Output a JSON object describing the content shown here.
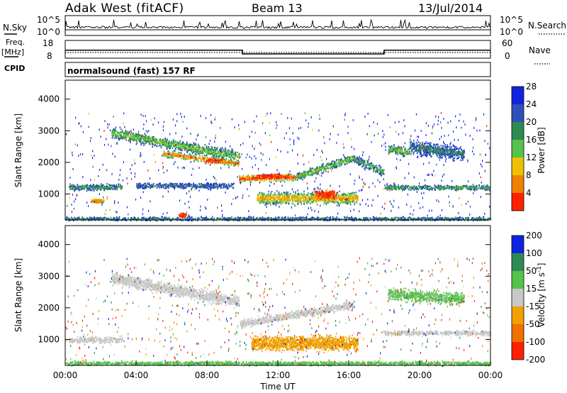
{
  "header": {
    "station": "Adak West (fitACF)",
    "beam": "Beam 13",
    "date": "13/Jul/2014"
  },
  "noise_panel": {
    "left_label": "N.Sky",
    "right_label": "N.Search",
    "left_ticks": [
      "10^5",
      "10^0"
    ],
    "right_ticks": [
      "10^5",
      "10^0"
    ]
  },
  "freq_panel": {
    "left_label": "Freq.",
    "left_unit": "[MHz]",
    "right_label": "Nave",
    "left_ticks": [
      "18",
      "8"
    ],
    "right_ticks": [
      "60",
      "0"
    ],
    "freq_steps": [
      {
        "start": 0.0,
        "end": 10.0,
        "value": 12.5
      },
      {
        "start": 10.0,
        "end": 18.0,
        "value": 10.4
      },
      {
        "start": 18.0,
        "end": 24.0,
        "value": 12.5
      }
    ]
  },
  "cpid_panel": {
    "label": "CPID",
    "mode": "normalsound (fast) 157 RF"
  },
  "chart_data": [
    {
      "type": "heatmap",
      "name": "power",
      "ylabel": "Slant Range [km]",
      "colorbar_label": "Power [dB]",
      "xlim": [
        0,
        24
      ],
      "ylim": [
        180,
        4600
      ],
      "yticks": [
        1000,
        2000,
        3000,
        4000
      ],
      "colorbar_ticks": [
        4,
        8,
        12,
        16,
        20,
        24,
        28
      ],
      "colorbar_colors": [
        "#1024e0",
        "#2f4fb8",
        "#2e8a52",
        "#55c24b",
        "#f0c000",
        "#f08000",
        "#ff2000"
      ],
      "bands": [
        {
          "t": [
            2.6,
            9.8
          ],
          "r_start": 2950,
          "r_end": 2200,
          "width": 220,
          "level": 0.55
        },
        {
          "t": [
            5.5,
            9.8
          ],
          "r_start": 2300,
          "r_end": 1980,
          "width": 140,
          "level": 0.85
        },
        {
          "t": [
            9.8,
            13.0
          ],
          "r_start": 1500,
          "r_end": 1550,
          "width": 160,
          "level": 0.95
        },
        {
          "t": [
            13.0,
            16.2
          ],
          "r_start": 1550,
          "r_end": 2150,
          "width": 180,
          "level": 0.55
        },
        {
          "t": [
            16.2,
            18.0
          ],
          "r_start": 2150,
          "r_end": 1700,
          "width": 180,
          "level": 0.45
        },
        {
          "t": [
            10.8,
            16.5
          ],
          "r_start": 880,
          "r_end": 880,
          "width": 260,
          "level": 0.75
        },
        {
          "t": [
            0.2,
            3.2
          ],
          "r_start": 1230,
          "r_end": 1230,
          "width": 140,
          "level": 0.4
        },
        {
          "t": [
            4.0,
            9.5
          ],
          "r_start": 1280,
          "r_end": 1280,
          "width": 120,
          "level": 0.3
        },
        {
          "t": [
            18.0,
            24.0
          ],
          "r_start": 1220,
          "r_end": 1220,
          "width": 110,
          "level": 0.45
        },
        {
          "t": [
            18.2,
            19.4
          ],
          "r_start": 2450,
          "r_end": 2350,
          "width": 200,
          "level": 0.55
        },
        {
          "t": [
            19.4,
            22.5
          ],
          "r_start": 2500,
          "r_end": 2300,
          "width": 300,
          "level": 0.35
        },
        {
          "t": [
            0.0,
            24.0
          ],
          "r_start": 230,
          "r_end": 230,
          "width": 90,
          "level": 0.35
        }
      ],
      "hotspots": [
        {
          "t": 14.7,
          "r": 1000,
          "dt": 0.9,
          "dr": 200,
          "level": 1.0
        },
        {
          "t": 11.6,
          "r": 1580,
          "dt": 1.2,
          "dr": 90,
          "level": 1.0
        },
        {
          "t": 8.4,
          "r": 2070,
          "dt": 0.7,
          "dr": 90,
          "level": 0.95
        },
        {
          "t": 6.6,
          "r": 350,
          "dt": 0.25,
          "dr": 80,
          "level": 1.0
        },
        {
          "t": 1.8,
          "r": 800,
          "dt": 0.5,
          "dr": 80,
          "level": 0.8
        }
      ]
    },
    {
      "type": "heatmap",
      "name": "velocity",
      "ylabel": "Slant Range [km]",
      "xlabel": "Time UT",
      "colorbar_label": "Velocity [m s^-1]",
      "colorbar_label_parts": [
        "Velocity [m s",
        "-1",
        "]"
      ],
      "xlim": [
        0,
        24
      ],
      "ylim": [
        180,
        4600
      ],
      "yticks": [
        1000,
        2000,
        3000,
        4000
      ],
      "xticks": [
        "00:00",
        "04:00",
        "08:00",
        "12:00",
        "16:00",
        "20:00",
        "00:00"
      ],
      "colorbar_ticks": [
        200,
        100,
        50,
        15,
        -15,
        -50,
        -100,
        -200
      ],
      "colorbar_colors": [
        "#1024e0",
        "#2e8a52",
        "#55c24b",
        "#c8c8c8",
        "#f0a000",
        "#f07000",
        "#ff2000"
      ],
      "bands": [
        {
          "t": [
            2.6,
            9.8
          ],
          "r_start": 2950,
          "r_end": 2200,
          "width": 260,
          "vel": 0
        },
        {
          "t": [
            9.8,
            16.2
          ],
          "r_start": 1500,
          "r_end": 2100,
          "width": 180,
          "vel": 0
        },
        {
          "t": [
            10.5,
            16.5
          ],
          "r_start": 900,
          "r_end": 900,
          "width": 320,
          "vel": -30
        },
        {
          "t": [
            0.2,
            3.2
          ],
          "r_start": 1000,
          "r_end": 1000,
          "width": 140,
          "vel": 0
        },
        {
          "t": [
            18.0,
            24.0
          ],
          "r_start": 1220,
          "r_end": 1220,
          "width": 110,
          "vel": 0
        },
        {
          "t": [
            18.2,
            22.5
          ],
          "r_start": 2450,
          "r_end": 2300,
          "width": 260,
          "vel": 20
        },
        {
          "t": [
            0.0,
            24.0
          ],
          "r_start": 260,
          "r_end": 260,
          "width": 90,
          "vel": 30
        }
      ]
    }
  ]
}
